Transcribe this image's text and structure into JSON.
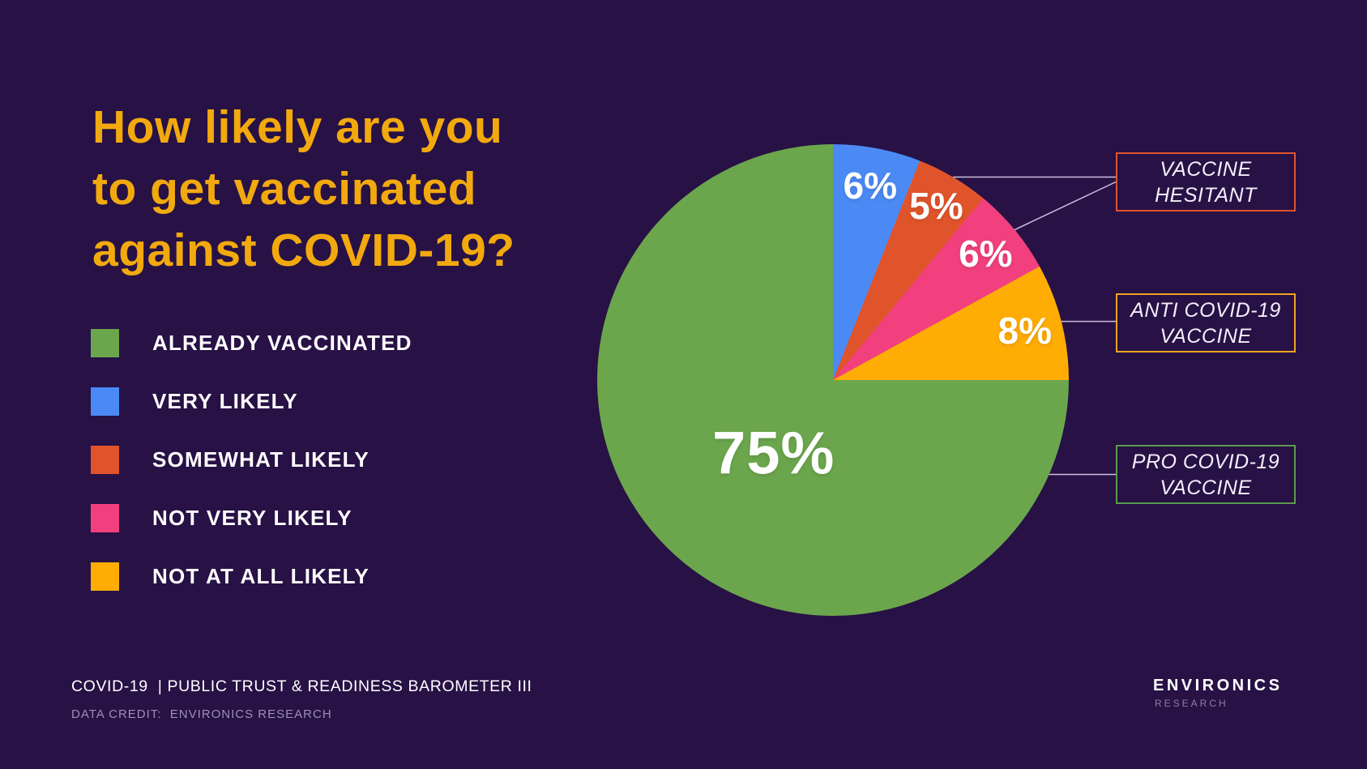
{
  "background_color": "#271145",
  "header": {
    "title_lines": [
      "How likely are you",
      "to get vaccinated",
      "against COVID-19?"
    ],
    "title_color": "#F2A90E"
  },
  "legend": {
    "items": [
      {
        "label": "ALREADY VACCINATED",
        "color": "#6BA64C"
      },
      {
        "label": "VERY LIKELY",
        "color": "#4B8AF5"
      },
      {
        "label": "SOMEWHAT LIKELY",
        "color": "#E0542C"
      },
      {
        "label": "NOT VERY LIKELY",
        "color": "#F2407E"
      },
      {
        "label": "NOT AT ALL LIKELY",
        "color": "#FFAD05"
      }
    ]
  },
  "chart_data": {
    "type": "pie",
    "title": "How likely are you to get vaccinated against COVID-19?",
    "start_angle_deg": 0,
    "direction": "clockwise",
    "slices": [
      {
        "label": "VERY LIKELY",
        "value": 6,
        "display": "6%",
        "color": "#4B8AF5",
        "label_r": 0.84
      },
      {
        "label": "SOMEWHAT LIKELY",
        "value": 5,
        "display": "5%",
        "color": "#E0542C",
        "label_r": 0.86
      },
      {
        "label": "NOT VERY LIKELY",
        "value": 6,
        "display": "6%",
        "color": "#F2407E",
        "label_r": 0.84
      },
      {
        "label": "NOT AT ALL LIKELY",
        "value": 8,
        "display": "8%",
        "color": "#FFAD05",
        "label_r": 0.84
      },
      {
        "label": "ALREADY VACCINATED",
        "value": 75,
        "display": "75%",
        "color": "#6BA64C",
        "label_r": 0.4,
        "label_angle_deg": 219
      }
    ],
    "callouts": [
      {
        "line1": "VACCINE",
        "line2": "HESITANT",
        "border_color": "#E0532F",
        "attach_angles_deg": [
          30.6,
          50.4
        ]
      },
      {
        "line1": "ANTI COVID-19",
        "line2": "VACCINE",
        "border_color": "#EFA51E",
        "attach_angles_deg": [
          75.6
        ]
      },
      {
        "line1": "PRO COVID-19",
        "line2": "VACCINE",
        "border_color": "#5C9A4C",
        "attach_angles_deg": [
          113.6
        ]
      }
    ],
    "connector_color": "#CBC0DE"
  },
  "footer": {
    "source": "COVID-19  | PUBLIC TRUST & READINESS BAROMETER III",
    "credit": "DATA CREDIT:  ENVIRONICS RESEARCH"
  },
  "logo": {
    "name": "ENVIRONICS",
    "sub": "RESEARCH"
  }
}
